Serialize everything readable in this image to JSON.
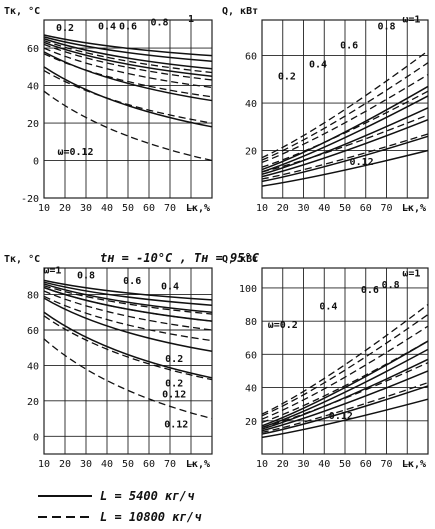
{
  "caption_mid": "tн = -10°C  ,  Tн = 95°C",
  "legend": [
    {
      "style": "solid",
      "text": "L = 5400 кг/ч"
    },
    {
      "style": "dashed",
      "text": "L = 10800 кг/ч"
    }
  ],
  "colors": {
    "ink": "#111111",
    "grid": "#222222"
  },
  "chart_data": [
    {
      "id": "tl",
      "type": "line",
      "ylabel": "Tк, °C",
      "xlabel": "Lк,%",
      "x_ticks": [
        10,
        20,
        30,
        40,
        50,
        60,
        70,
        80
      ],
      "x_tick_labels": [
        "10",
        "20",
        "30",
        "40",
        "50",
        "60",
        "70",
        "—"
      ],
      "y_ticks": [
        -20,
        0,
        20,
        40,
        60
      ],
      "xlim": [
        10,
        90
      ],
      "ylim": [
        -20,
        75
      ],
      "grid": true,
      "omega_labels": [
        {
          "text": "0.2",
          "x": 20,
          "y": 69
        },
        {
          "text": "0.4",
          "x": 40,
          "y": 70
        },
        {
          "text": "0.6",
          "x": 50,
          "y": 70
        },
        {
          "text": "0.8",
          "x": 65,
          "y": 72
        },
        {
          "text": "1",
          "x": 80,
          "y": 74
        },
        {
          "text": "ω=0.12",
          "x": 25,
          "y": 3
        }
      ],
      "series": [
        {
          "omega": 1,
          "style": "solid",
          "x": [
            10,
            90
          ],
          "y": [
            67,
            56
          ]
        },
        {
          "omega": 0.8,
          "style": "solid",
          "x": [
            10,
            90
          ],
          "y": [
            66,
            53
          ]
        },
        {
          "omega": 0.6,
          "style": "solid",
          "x": [
            10,
            90
          ],
          "y": [
            65,
            49
          ]
        },
        {
          "omega": 0.4,
          "style": "solid",
          "x": [
            10,
            90
          ],
          "y": [
            63,
            45
          ]
        },
        {
          "omega": 0.2,
          "style": "solid",
          "x": [
            10,
            90
          ],
          "y": [
            58,
            32
          ]
        },
        {
          "omega": 0.12,
          "style": "solid",
          "x": [
            10,
            90
          ],
          "y": [
            50,
            18
          ]
        },
        {
          "omega": 1,
          "style": "dashed",
          "x": [
            10,
            90
          ],
          "y": [
            64,
            47
          ]
        },
        {
          "omega": 0.8,
          "style": "dashed",
          "x": [
            10,
            90
          ],
          "y": [
            62,
            43
          ]
        },
        {
          "omega": 0.6,
          "style": "dashed",
          "x": [
            10,
            90
          ],
          "y": [
            60,
            39
          ]
        },
        {
          "omega": 0.4,
          "style": "dashed",
          "x": [
            10,
            90
          ],
          "y": [
            57,
            34
          ]
        },
        {
          "omega": 0.2,
          "style": "dashed",
          "x": [
            10,
            90
          ],
          "y": [
            48,
            20
          ]
        },
        {
          "omega": 0.12,
          "style": "dashed",
          "x": [
            10,
            90
          ],
          "y": [
            37,
            0
          ]
        }
      ]
    },
    {
      "id": "tr",
      "type": "line",
      "ylabel": "Q, кВт",
      "xlabel": "Lк,%",
      "x_ticks": [
        10,
        20,
        30,
        40,
        50,
        60,
        70,
        80
      ],
      "x_tick_labels": [
        "10",
        "20",
        "30",
        "40",
        "50",
        "60",
        "70",
        "—"
      ],
      "y_ticks": [
        20,
        40,
        60
      ],
      "xlim": [
        10,
        90
      ],
      "ylim": [
        0,
        75
      ],
      "grid": true,
      "omega_labels": [
        {
          "text": "0.2",
          "x": 22,
          "y": 50
        },
        {
          "text": "0.4",
          "x": 37,
          "y": 55
        },
        {
          "text": "0.6",
          "x": 52,
          "y": 63
        },
        {
          "text": "0.8",
          "x": 70,
          "y": 71
        },
        {
          "text": "ω=1",
          "x": 82,
          "y": 74
        },
        {
          "text": "0.12",
          "x": 58,
          "y": 14
        }
      ],
      "series": [
        {
          "omega": 1,
          "style": "solid",
          "x": [
            10,
            90
          ],
          "y": [
            12,
            47
          ]
        },
        {
          "omega": 0.8,
          "style": "solid",
          "x": [
            10,
            90
          ],
          "y": [
            11,
            43
          ]
        },
        {
          "omega": 0.6,
          "style": "solid",
          "x": [
            10,
            90
          ],
          "y": [
            10,
            38
          ]
        },
        {
          "omega": 0.4,
          "style": "solid",
          "x": [
            10,
            90
          ],
          "y": [
            9,
            33
          ]
        },
        {
          "omega": 0.2,
          "style": "solid",
          "x": [
            10,
            90
          ],
          "y": [
            7,
            26
          ]
        },
        {
          "omega": 0.12,
          "style": "solid",
          "x": [
            10,
            90
          ],
          "y": [
            5,
            20
          ]
        },
        {
          "omega": 1,
          "style": "dashed",
          "x": [
            10,
            90
          ],
          "y": [
            17,
            62
          ]
        },
        {
          "omega": 0.8,
          "style": "dashed",
          "x": [
            10,
            90
          ],
          "y": [
            16,
            57
          ]
        },
        {
          "omega": 0.6,
          "style": "dashed",
          "x": [
            10,
            90
          ],
          "y": [
            15,
            52
          ]
        },
        {
          "omega": 0.4,
          "style": "dashed",
          "x": [
            10,
            90
          ],
          "y": [
            13,
            45
          ]
        },
        {
          "omega": 0.2,
          "style": "dashed",
          "x": [
            10,
            90
          ],
          "y": [
            11,
            35
          ]
        },
        {
          "omega": 0.12,
          "style": "dashed",
          "x": [
            10,
            90
          ],
          "y": [
            8,
            27
          ]
        }
      ]
    },
    {
      "id": "bl",
      "type": "line",
      "ylabel": "Tк, °C",
      "xlabel": "Lк,%",
      "x_ticks": [
        10,
        20,
        30,
        40,
        50,
        60,
        70,
        80
      ],
      "x_tick_labels": [
        "10",
        "20",
        "30",
        "40",
        "50",
        "60",
        "70",
        "—"
      ],
      "y_ticks": [
        0,
        20,
        40,
        60,
        80
      ],
      "xlim": [
        10,
        90
      ],
      "ylim": [
        -10,
        95
      ],
      "grid": true,
      "omega_labels": [
        {
          "text": "ω=1",
          "x": 14,
          "y": 92
        },
        {
          "text": "0.8",
          "x": 30,
          "y": 89
        },
        {
          "text": "0.6",
          "x": 52,
          "y": 86
        },
        {
          "text": "0.4",
          "x": 70,
          "y": 83
        },
        {
          "text": "0.2",
          "x": 72,
          "y": 42
        },
        {
          "text": "0.2",
          "x": 72,
          "y": 28
        },
        {
          "text": "0.12",
          "x": 72,
          "y": 22
        },
        {
          "text": "0.12",
          "x": 73,
          "y": 5
        }
      ],
      "series": [
        {
          "omega": 1,
          "style": "solid",
          "x": [
            10,
            90
          ],
          "y": [
            88,
            77
          ]
        },
        {
          "omega": 0.8,
          "style": "solid",
          "x": [
            10,
            90
          ],
          "y": [
            87,
            74
          ]
        },
        {
          "omega": 0.6,
          "style": "solid",
          "x": [
            10,
            90
          ],
          "y": [
            86,
            70
          ]
        },
        {
          "omega": 0.4,
          "style": "solid",
          "x": [
            10,
            90
          ],
          "y": [
            84,
            65
          ]
        },
        {
          "omega": 0.2,
          "style": "solid",
          "x": [
            10,
            90
          ],
          "y": [
            78,
            48
          ]
        },
        {
          "omega": 0.12,
          "style": "solid",
          "x": [
            10,
            90
          ],
          "y": [
            70,
            33
          ]
        },
        {
          "omega": 1,
          "style": "dashed",
          "x": [
            10,
            90
          ],
          "y": [
            85,
            69
          ]
        },
        {
          "omega": 0.8,
          "style": "dashed",
          "x": [
            10,
            90
          ],
          "y": [
            84,
            65
          ]
        },
        {
          "omega": 0.6,
          "style": "dashed",
          "x": [
            10,
            90
          ],
          "y": [
            82,
            60
          ]
        },
        {
          "omega": 0.4,
          "style": "dashed",
          "x": [
            10,
            90
          ],
          "y": [
            79,
            54
          ]
        },
        {
          "omega": 0.2,
          "style": "dashed",
          "x": [
            10,
            90
          ],
          "y": [
            68,
            32
          ]
        },
        {
          "omega": 0.12,
          "style": "dashed",
          "x": [
            10,
            90
          ],
          "y": [
            55,
            10
          ]
        }
      ]
    },
    {
      "id": "br",
      "type": "line",
      "ylabel": "Q, кВт",
      "xlabel": "Lк,%",
      "x_ticks": [
        10,
        20,
        30,
        40,
        50,
        60,
        70,
        80
      ],
      "x_tick_labels": [
        "10",
        "20",
        "30",
        "40",
        "50",
        "60",
        "70",
        "—"
      ],
      "y_ticks": [
        20,
        40,
        60,
        80,
        100
      ],
      "xlim": [
        10,
        90
      ],
      "ylim": [
        0,
        112
      ],
      "grid": true,
      "omega_labels": [
        {
          "text": "ω=0.2",
          "x": 20,
          "y": 76
        },
        {
          "text": "0.4",
          "x": 42,
          "y": 87
        },
        {
          "text": "0.6",
          "x": 62,
          "y": 97
        },
        {
          "text": "0.8",
          "x": 72,
          "y": 100
        },
        {
          "text": "ω=1",
          "x": 82,
          "y": 107
        },
        {
          "text": "0.12",
          "x": 48,
          "y": 21
        }
      ],
      "series": [
        {
          "omega": 1,
          "style": "solid",
          "x": [
            10,
            90
          ],
          "y": [
            17,
            68
          ]
        },
        {
          "omega": 0.8,
          "style": "solid",
          "x": [
            10,
            90
          ],
          "y": [
            16,
            63
          ]
        },
        {
          "omega": 0.6,
          "style": "solid",
          "x": [
            10,
            90
          ],
          "y": [
            15,
            57
          ]
        },
        {
          "omega": 0.4,
          "style": "solid",
          "x": [
            10,
            90
          ],
          "y": [
            14,
            50
          ]
        },
        {
          "omega": 0.2,
          "style": "solid",
          "x": [
            10,
            90
          ],
          "y": [
            12,
            41
          ]
        },
        {
          "omega": 0.12,
          "style": "solid",
          "x": [
            10,
            90
          ],
          "y": [
            10,
            33
          ]
        },
        {
          "omega": 1,
          "style": "dashed",
          "x": [
            10,
            90
          ],
          "y": [
            24,
            90
          ]
        },
        {
          "omega": 0.8,
          "style": "dashed",
          "x": [
            10,
            90
          ],
          "y": [
            23,
            84
          ]
        },
        {
          "omega": 0.6,
          "style": "dashed",
          "x": [
            10,
            90
          ],
          "y": [
            21,
            77
          ]
        },
        {
          "omega": 0.4,
          "style": "dashed",
          "x": [
            10,
            90
          ],
          "y": [
            19,
            68
          ]
        },
        {
          "omega": 0.2,
          "style": "dashed",
          "x": [
            10,
            90
          ],
          "y": [
            16,
            55
          ]
        },
        {
          "omega": 0.12,
          "style": "dashed",
          "x": [
            10,
            90
          ],
          "y": [
            13,
            43
          ]
        }
      ]
    }
  ]
}
